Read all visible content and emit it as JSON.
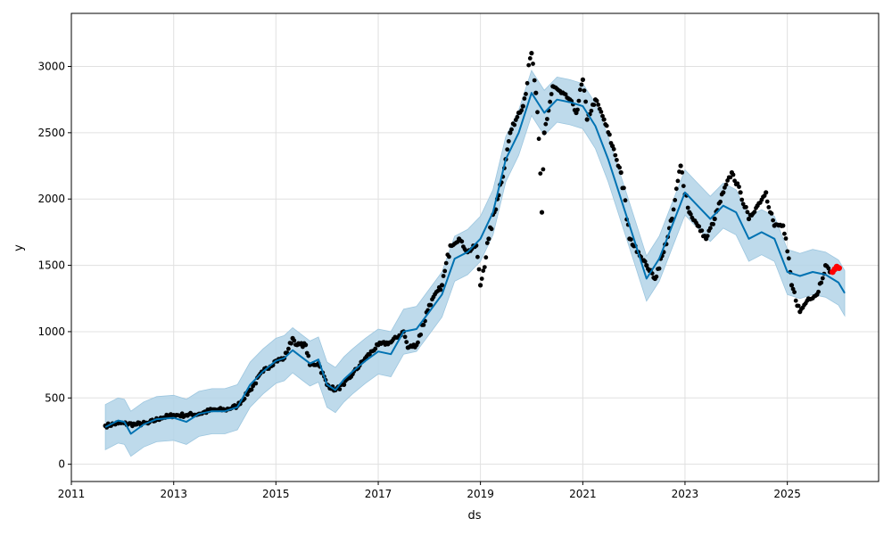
{
  "chart_data": {
    "type": "line",
    "title": "",
    "xlabel": "ds",
    "ylabel": "y",
    "xlim": [
      "2011-01-01",
      "2026-10-15"
    ],
    "ylim": [
      -130,
      3400
    ],
    "x_ticks": [
      "2011",
      "2013",
      "2015",
      "2017",
      "2019",
      "2021",
      "2023",
      "2025"
    ],
    "y_ticks": [
      0,
      500,
      1000,
      1500,
      2000,
      2500,
      3000
    ],
    "grid": true,
    "legend": "none",
    "colors": {
      "forecast_line": "#0072b2",
      "uncertainty_band": "#b3d4e8",
      "observed_points": "#000000",
      "recent_points": "#ff0000",
      "grid": "#e0e0e0"
    },
    "series": [
      {
        "key": "forecast",
        "style": "line",
        "points": [
          [
            "2011-09-01",
            280
          ],
          [
            "2011-12-01",
            330
          ],
          [
            "2012-01-15",
            320
          ],
          [
            "2012-03-01",
            230
          ],
          [
            "2012-06-01",
            300
          ],
          [
            "2012-09-01",
            340
          ],
          [
            "2013-01-01",
            350
          ],
          [
            "2013-04-01",
            320
          ],
          [
            "2013-07-01",
            380
          ],
          [
            "2013-10-01",
            400
          ],
          [
            "2014-01-01",
            400
          ],
          [
            "2014-04-01",
            430
          ],
          [
            "2014-07-01",
            600
          ],
          [
            "2014-10-01",
            700
          ],
          [
            "2015-01-01",
            780
          ],
          [
            "2015-03-01",
            800
          ],
          [
            "2015-05-01",
            860
          ],
          [
            "2015-07-01",
            810
          ],
          [
            "2015-09-01",
            760
          ],
          [
            "2015-11-01",
            790
          ],
          [
            "2016-01-01",
            600
          ],
          [
            "2016-03-01",
            560
          ],
          [
            "2016-05-01",
            640
          ],
          [
            "2016-07-01",
            700
          ],
          [
            "2016-10-01",
            780
          ],
          [
            "2017-01-01",
            850
          ],
          [
            "2017-04-01",
            830
          ],
          [
            "2017-07-01",
            1000
          ],
          [
            "2017-10-01",
            1020
          ],
          [
            "2018-01-01",
            1150
          ],
          [
            "2018-04-01",
            1280
          ],
          [
            "2018-07-01",
            1550
          ],
          [
            "2018-10-01",
            1600
          ],
          [
            "2019-01-01",
            1700
          ],
          [
            "2019-04-01",
            1900
          ],
          [
            "2019-07-01",
            2300
          ],
          [
            "2019-10-01",
            2500
          ],
          [
            "2020-01-01",
            2800
          ],
          [
            "2020-04-01",
            2650
          ],
          [
            "2020-07-01",
            2750
          ],
          [
            "2020-10-01",
            2730
          ],
          [
            "2021-01-01",
            2700
          ],
          [
            "2021-04-01",
            2550
          ],
          [
            "2021-07-01",
            2300
          ],
          [
            "2021-10-01",
            2000
          ],
          [
            "2022-01-01",
            1700
          ],
          [
            "2022-04-01",
            1400
          ],
          [
            "2022-07-01",
            1550
          ],
          [
            "2022-10-01",
            1800
          ],
          [
            "2023-01-01",
            2050
          ],
          [
            "2023-04-01",
            1950
          ],
          [
            "2023-07-01",
            1850
          ],
          [
            "2023-10-01",
            1950
          ],
          [
            "2024-01-01",
            1900
          ],
          [
            "2024-04-01",
            1700
          ],
          [
            "2024-07-01",
            1750
          ],
          [
            "2024-10-01",
            1700
          ],
          [
            "2025-01-01",
            1450
          ],
          [
            "2025-04-01",
            1420
          ],
          [
            "2025-07-01",
            1450
          ],
          [
            "2025-10-01",
            1430
          ],
          [
            "2026-01-01",
            1370
          ],
          [
            "2026-02-15",
            1290
          ]
        ]
      },
      {
        "key": "uncertainty",
        "style": "band",
        "halfwidth": 170
      },
      {
        "key": "observed",
        "style": "scatter",
        "points": [
          [
            "2011-09-01",
            290
          ],
          [
            "2011-12-01",
            310
          ],
          [
            "2012-04-01",
            300
          ],
          [
            "2012-07-01",
            310
          ],
          [
            "2012-10-01",
            350
          ],
          [
            "2013-01-01",
            370
          ],
          [
            "2013-04-01",
            370
          ],
          [
            "2013-07-01",
            380
          ],
          [
            "2013-10-01",
            410
          ],
          [
            "2014-01-01",
            410
          ],
          [
            "2014-04-01",
            440
          ],
          [
            "2014-07-01",
            560
          ],
          [
            "2014-10-01",
            700
          ],
          [
            "2015-01-01",
            780
          ],
          [
            "2015-03-01",
            800
          ],
          [
            "2015-05-01",
            950
          ],
          [
            "2015-06-01",
            900
          ],
          [
            "2015-08-01",
            900
          ],
          [
            "2015-09-01",
            750
          ],
          [
            "2015-11-01",
            760
          ],
          [
            "2016-01-01",
            600
          ],
          [
            "2016-03-01",
            560
          ],
          [
            "2016-05-01",
            600
          ],
          [
            "2016-07-01",
            680
          ],
          [
            "2016-10-01",
            800
          ],
          [
            "2017-01-01",
            900
          ],
          [
            "2017-04-01",
            920
          ],
          [
            "2017-07-01",
            1000
          ],
          [
            "2017-08-01",
            880
          ],
          [
            "2017-10-01",
            900
          ],
          [
            "2018-01-01",
            1200
          ],
          [
            "2018-04-01",
            1350
          ],
          [
            "2018-06-01",
            1650
          ],
          [
            "2018-08-01",
            1700
          ],
          [
            "2018-10-01",
            1600
          ],
          [
            "2018-12-01",
            1650
          ],
          [
            "2019-01-01",
            1350
          ],
          [
            "2019-03-01",
            1700
          ],
          [
            "2019-05-01",
            2000
          ],
          [
            "2019-07-01",
            2300
          ],
          [
            "2019-08-01",
            2500
          ],
          [
            "2019-10-01",
            2650
          ],
          [
            "2019-11-01",
            2700
          ],
          [
            "2020-01-01",
            3100
          ],
          [
            "2020-02-01",
            2800
          ],
          [
            "2020-03-15",
            1900
          ],
          [
            "2020-04-01",
            2500
          ],
          [
            "2020-06-01",
            2850
          ],
          [
            "2020-08-01",
            2800
          ],
          [
            "2020-10-01",
            2750
          ],
          [
            "2020-11-15",
            2650
          ],
          [
            "2021-01-01",
            2900
          ],
          [
            "2021-02-01",
            2600
          ],
          [
            "2021-04-01",
            2750
          ],
          [
            "2021-06-01",
            2600
          ],
          [
            "2021-08-01",
            2400
          ],
          [
            "2021-10-01",
            2200
          ],
          [
            "2021-12-01",
            1700
          ],
          [
            "2022-02-01",
            1600
          ],
          [
            "2022-04-01",
            1500
          ],
          [
            "2022-06-01",
            1400
          ],
          [
            "2022-08-01",
            1600
          ],
          [
            "2022-10-01",
            1850
          ],
          [
            "2022-12-01",
            2250
          ],
          [
            "2023-02-01",
            1900
          ],
          [
            "2023-04-01",
            1800
          ],
          [
            "2023-06-01",
            1700
          ],
          [
            "2023-08-01",
            1850
          ],
          [
            "2023-10-01",
            2050
          ],
          [
            "2023-12-01",
            2200
          ],
          [
            "2024-02-01",
            2050
          ],
          [
            "2024-04-01",
            1850
          ],
          [
            "2024-06-01",
            1950
          ],
          [
            "2024-08-01",
            2050
          ],
          [
            "2024-10-01",
            1800
          ],
          [
            "2024-12-01",
            1800
          ],
          [
            "2025-02-01",
            1350
          ],
          [
            "2025-04-01",
            1150
          ],
          [
            "2025-06-01",
            1250
          ],
          [
            "2025-08-01",
            1280
          ],
          [
            "2025-10-01",
            1500
          ],
          [
            "2025-11-01",
            1450
          ]
        ]
      },
      {
        "key": "recent",
        "style": "scatter",
        "points": [
          [
            "2025-11-20",
            1450
          ],
          [
            "2025-12-05",
            1470
          ],
          [
            "2025-12-20",
            1490
          ],
          [
            "2026-01-05",
            1480
          ]
        ]
      }
    ]
  }
}
